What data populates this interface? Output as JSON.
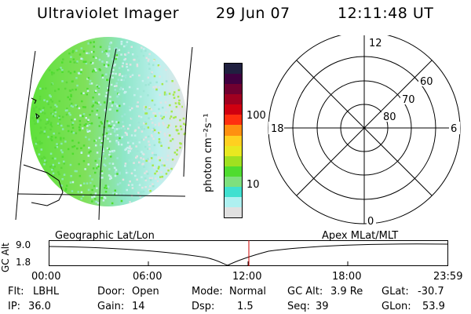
{
  "header": {
    "instrument": "Ultraviolet Imager",
    "date": "29 Jun 07",
    "time": "12:11:48 UT"
  },
  "colorbar": {
    "unit_label": "photon cm⁻²s⁻¹",
    "ticks": [
      "100",
      "10"
    ],
    "colors": [
      "#e0e0e0",
      "#aef0f0",
      "#40e0d0",
      "#7ee07e",
      "#4fdc2f",
      "#a0e020",
      "#e8e820",
      "#ffd020",
      "#ff9010",
      "#ff3010",
      "#d00010",
      "#a00020",
      "#700030",
      "#400040",
      "#202040"
    ]
  },
  "polar_plot": {
    "mlt_labels": {
      "top": "12",
      "left": "18",
      "right": "6",
      "bottom": "0"
    },
    "lat_labels": [
      "60",
      "70",
      "80"
    ]
  },
  "orbit_panel": {
    "left_label": "Geographic Lat/Lon",
    "right_label": "Apex MLat/MLT",
    "axis_title": "GC Alt",
    "y_ticks": [
      "9.0",
      "1.8"
    ],
    "x_ticks": [
      "00:00",
      "06:00",
      "12:00",
      "18:00",
      "23:59"
    ],
    "current_time_color": "#cc0000"
  },
  "status": {
    "flt_label": "Flt:",
    "flt_value": "LBHL",
    "ip_label": "IP:",
    "ip_value": "36.0",
    "door_label": "Door:",
    "door_value": "Open",
    "gain_label": "Gain:",
    "gain_value": "14",
    "mode_label": "Mode:",
    "mode_value": "Normal",
    "dsp_label": "Dsp:",
    "dsp_value": "1.5",
    "gcalt_label": "GC Alt:",
    "gcalt_value": "3.9 Re",
    "seq_label": "Seq:",
    "seq_value": "39",
    "glat_label": "GLat:",
    "glat_value": "-30.7",
    "glon_label": "GLon:",
    "glon_value": "53.9"
  }
}
